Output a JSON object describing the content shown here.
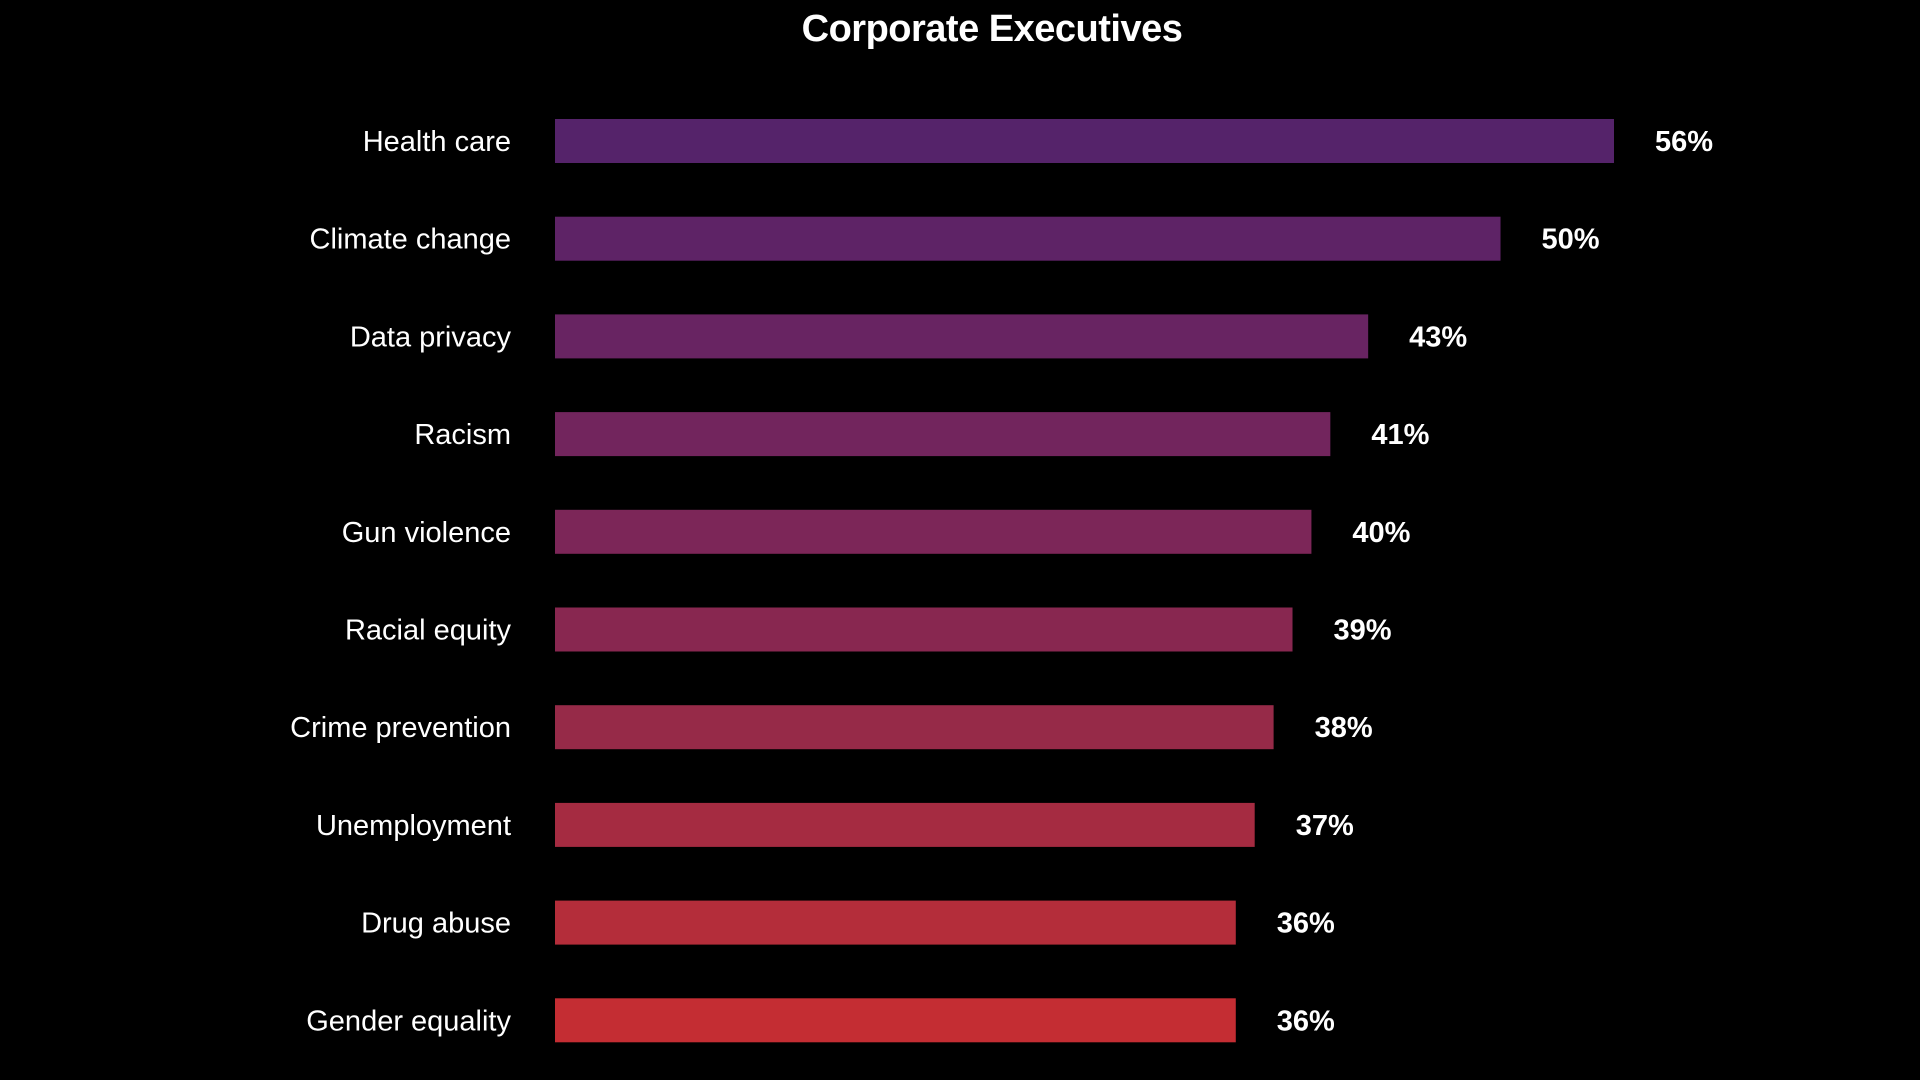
{
  "chart_data": {
    "type": "bar",
    "orientation": "horizontal",
    "title": "Corporate Executives",
    "categories": [
      "Health care",
      "Climate change",
      "Data privacy",
      "Racism",
      "Gun violence",
      "Racial equity",
      "Crime prevention",
      "Unemployment",
      "Drug abuse",
      "Gender equality"
    ],
    "values": [
      56,
      50,
      43,
      41,
      40,
      39,
      38,
      37,
      36,
      36
    ],
    "value_labels": [
      "56%",
      "50%",
      "43%",
      "41%",
      "40%",
      "39%",
      "38%",
      "37%",
      "36%",
      "36%"
    ],
    "colors": [
      "#55236a",
      "#5e2366",
      "#682462",
      "#72255d",
      "#7c2658",
      "#882750",
      "#962a48",
      "#a52b41",
      "#b42d3a",
      "#c42d33"
    ],
    "xlim": [
      0,
      56
    ],
    "grid": false,
    "legend": "none",
    "background": "#000000"
  }
}
